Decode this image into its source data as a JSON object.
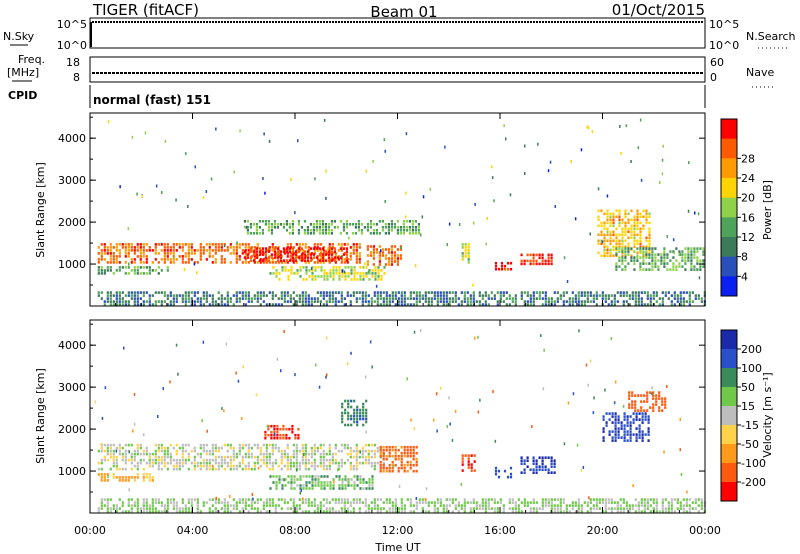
{
  "header": {
    "radar": "TIGER (fitACF)",
    "beam": "Beam 01",
    "date": "01/Oct/2015"
  },
  "strips": {
    "nsky_label": "N.Sky",
    "nsearch_label": "N.Search",
    "nsky_ticks": [
      "10^5",
      "10^0"
    ],
    "nsearch_ticks": [
      "10^5",
      "10^0"
    ],
    "freq_label": "Freq.",
    "freq_unit": "[MHz]",
    "freq_ticks": [
      "18",
      "8"
    ],
    "nave_label": "Nave",
    "nave_ticks": [
      "60",
      "0"
    ],
    "cpid_label": "CPID",
    "cpid_value": "normal (fast) 151"
  },
  "colors": {
    "power": [
      "#0a1ff0",
      "#2a4fb8",
      "#3d7a5a",
      "#4fa25a",
      "#8fd14a",
      "#ffd400",
      "#ff9a00",
      "#ff5a00",
      "#ff0000"
    ],
    "velocity": [
      "#1a2aa8",
      "#2a4fc8",
      "#3a8a5a",
      "#6fc84a",
      "#bdbdbd",
      "#ffd24a",
      "#ff9a1a",
      "#ff5a10",
      "#ff0000"
    ]
  },
  "chart_data": [
    {
      "type": "heatmap",
      "title": "",
      "xlabel": "",
      "ylabel": "Slant Range [km]",
      "x_ticks": [
        "00:00",
        "04:00",
        "08:00",
        "12:00",
        "16:00",
        "20:00",
        "00:00"
      ],
      "y_ticks": [
        "1000",
        "2000",
        "3000",
        "4000"
      ],
      "ylim": [
        0,
        4600
      ],
      "colorbar": {
        "label": "Power [dB]",
        "ticks": [
          "4",
          "8",
          "12",
          "16",
          "20",
          "24",
          "28"
        ],
        "range": [
          0,
          30
        ]
      },
      "regions": [
        {
          "t": [
            0.3,
            10.5
          ],
          "r": [
            1050,
            1500
          ],
          "value": 24
        },
        {
          "t": [
            6.0,
            10.0
          ],
          "r": [
            1100,
            1400
          ],
          "value": 28
        },
        {
          "t": [
            0.3,
            3.0
          ],
          "r": [
            750,
            950
          ],
          "value": 12
        },
        {
          "t": [
            7.0,
            11.5
          ],
          "r": [
            650,
            950
          ],
          "value": 16
        },
        {
          "t": [
            10.8,
            12.2
          ],
          "r": [
            950,
            1450
          ],
          "value": 24
        },
        {
          "t": [
            6.0,
            12.8
          ],
          "r": [
            1750,
            2050
          ],
          "value": 12
        },
        {
          "t": [
            14.5,
            14.8
          ],
          "r": [
            1050,
            1500
          ],
          "value": 16
        },
        {
          "t": [
            15.8,
            16.5
          ],
          "r": [
            850,
            1050
          ],
          "value": 28
        },
        {
          "t": [
            16.8,
            18.2
          ],
          "r": [
            1000,
            1250
          ],
          "value": 28
        },
        {
          "t": [
            19.8,
            21.8
          ],
          "r": [
            1200,
            2300
          ],
          "value": 20
        },
        {
          "t": [
            20.5,
            24.0
          ],
          "r": [
            850,
            1400
          ],
          "value": 12
        },
        {
          "t": [
            0.3,
            24.0
          ],
          "r": [
            50,
            350
          ],
          "value": 8
        }
      ]
    },
    {
      "type": "heatmap",
      "title": "",
      "xlabel": "Time UT",
      "ylabel": "Slant Range [km]",
      "x_ticks": [
        "00:00",
        "04:00",
        "08:00",
        "12:00",
        "16:00",
        "20:00",
        "00:00"
      ],
      "y_ticks": [
        "1000",
        "2000",
        "3000",
        "4000"
      ],
      "ylim": [
        0,
        4600
      ],
      "colorbar": {
        "label": "Velocity [m s⁻¹]",
        "ticks": [
          "200",
          "100",
          "50",
          "15",
          "-15",
          "-50",
          "-100",
          "-200"
        ],
        "range": [
          -250,
          250
        ]
      },
      "regions": [
        {
          "t": [
            0.3,
            11.5
          ],
          "r": [
            1050,
            1650
          ],
          "value": 0
        },
        {
          "t": [
            0.3,
            2.5
          ],
          "r": [
            750,
            950
          ],
          "value": -60
        },
        {
          "t": [
            7.0,
            11.0
          ],
          "r": [
            600,
            900
          ],
          "value": 40
        },
        {
          "t": [
            6.8,
            8.2
          ],
          "r": [
            1800,
            2100
          ],
          "value": -200
        },
        {
          "t": [
            9.8,
            10.8
          ],
          "r": [
            2100,
            2700
          ],
          "value": 80
        },
        {
          "t": [
            11.3,
            12.8
          ],
          "r": [
            1000,
            1600
          ],
          "value": -120
        },
        {
          "t": [
            14.5,
            15.0
          ],
          "r": [
            1000,
            1400
          ],
          "value": -200
        },
        {
          "t": [
            15.8,
            16.5
          ],
          "r": [
            850,
            1100
          ],
          "value": 180
        },
        {
          "t": [
            16.8,
            18.2
          ],
          "r": [
            950,
            1350
          ],
          "value": 200
        },
        {
          "t": [
            20.0,
            21.8
          ],
          "r": [
            1700,
            2400
          ],
          "value": 200
        },
        {
          "t": [
            21.0,
            22.5
          ],
          "r": [
            2400,
            2900
          ],
          "value": -150
        },
        {
          "t": [
            0.3,
            24.0
          ],
          "r": [
            50,
            350
          ],
          "value": 20
        }
      ]
    }
  ]
}
